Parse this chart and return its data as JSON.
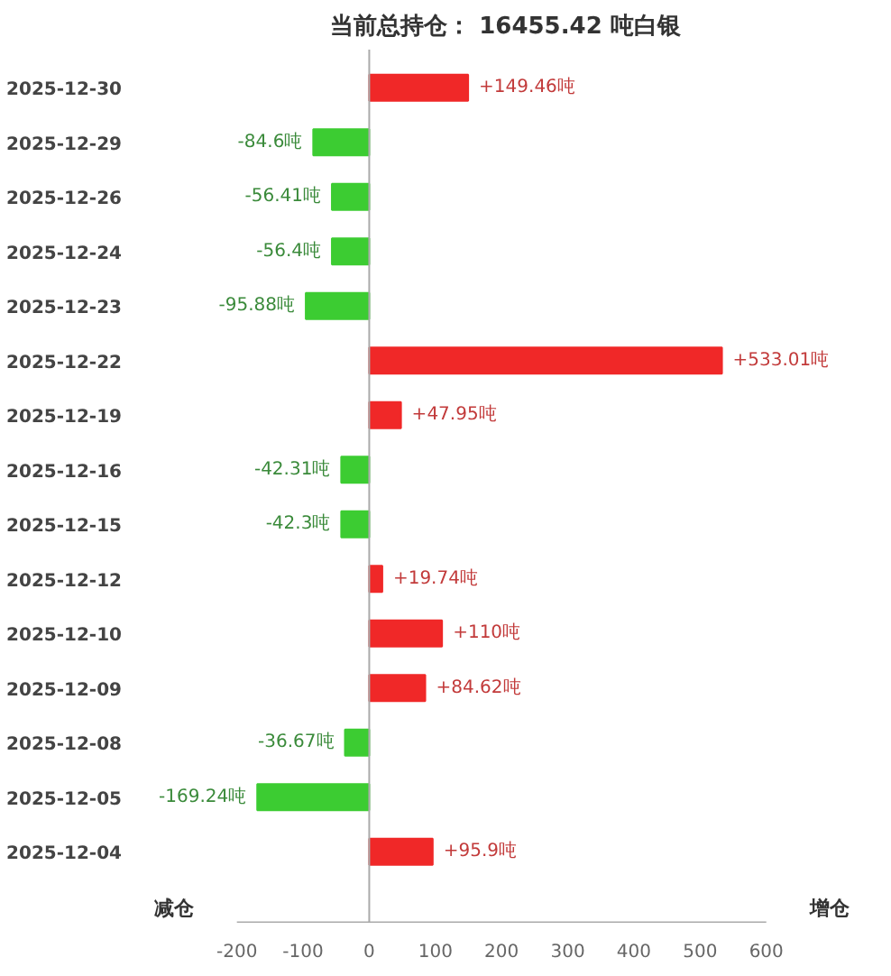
{
  "chart_data": {
    "type": "bar",
    "orientation": "horizontal",
    "title": "当前总持仓：  16455.42 吨白银",
    "categories": [
      "2025-12-30",
      "2025-12-29",
      "2025-12-26",
      "2025-12-24",
      "2025-12-23",
      "2025-12-22",
      "2025-12-19",
      "2025-12-16",
      "2025-12-15",
      "2025-12-12",
      "2025-12-10",
      "2025-12-09",
      "2025-12-08",
      "2025-12-05",
      "2025-12-04"
    ],
    "values": [
      149.46,
      -84.6,
      -56.41,
      -56.4,
      -95.88,
      533.01,
      47.95,
      -42.31,
      -42.3,
      19.74,
      110,
      84.62,
      -36.67,
      -169.24,
      95.9
    ],
    "colors": [
      "#f02828",
      "#3ccc32",
      "#3ccc32",
      "#3ccc32",
      "#3ccc32",
      "#f02828",
      "#f02828",
      "#3ccc32",
      "#3ccc32",
      "#f02828",
      "#f02828",
      "#f02828",
      "#3ccc32",
      "#3ccc32",
      "#f02828"
    ],
    "value_labels": [
      "+149.46吨",
      "-84.6吨",
      "-56.41吨",
      "-56.4吨",
      "-95.88吨",
      "+533.01吨",
      "+47.95吨",
      "-42.31吨",
      "-42.3吨",
      "+19.74吨",
      "+110吨",
      "+84.62吨",
      "-36.67吨",
      "-169.24吨",
      "+95.9吨"
    ],
    "xlim": [
      -200,
      600
    ],
    "xticks": [
      -200,
      -100,
      0,
      100,
      200,
      300,
      400,
      500,
      600
    ],
    "ref_lines": [
      {
        "axis": "x",
        "value": 0,
        "color": "#aaaaaa"
      }
    ],
    "annotations": [
      "减仓",
      "增仓"
    ],
    "grid": false
  }
}
